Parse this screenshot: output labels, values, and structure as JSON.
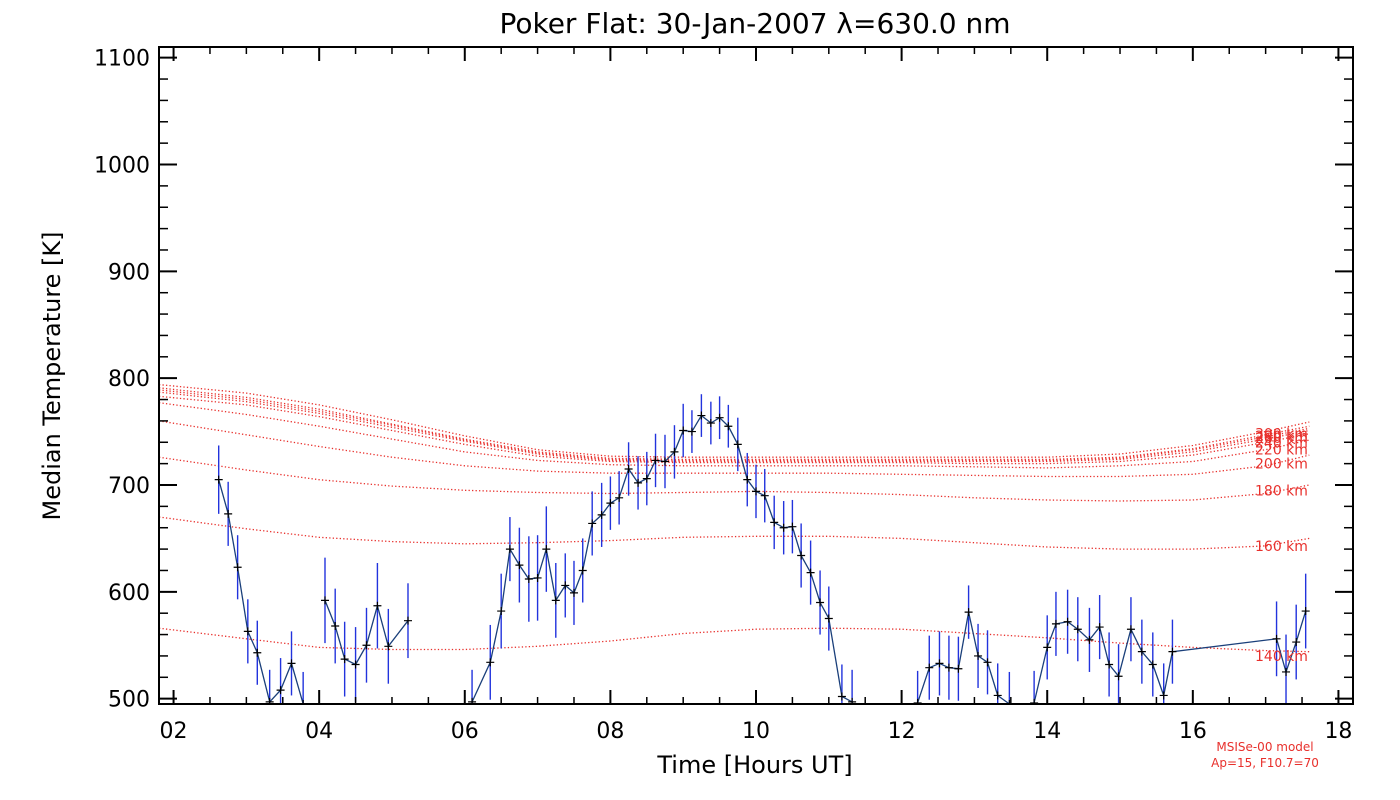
{
  "chart_data": {
    "type": "line",
    "title": "Poker Flat: 30-Jan-2007 λ=630.0 nm",
    "xlabel": "Time [Hours UT]",
    "ylabel": "Median Temperature [K]",
    "xlim": [
      1.8,
      18.2
    ],
    "ylim": [
      495,
      1110
    ],
    "x_ticks": [
      2,
      4,
      6,
      8,
      10,
      12,
      14,
      16,
      18
    ],
    "x_tick_labels": [
      "02",
      "04",
      "06",
      "08",
      "10",
      "12",
      "14",
      "16",
      "18"
    ],
    "y_ticks": [
      500,
      600,
      700,
      800,
      900,
      1000,
      1100
    ],
    "y_tick_labels": [
      "500",
      "600",
      "700",
      "800",
      "900",
      "1000",
      "1100"
    ],
    "grid": false,
    "colors": {
      "measurement_line": "#1a3f7a",
      "error_bar": "#2233dd",
      "marker": "#000000",
      "model": "#e8302c"
    },
    "measured": {
      "points": [
        [
          2.62,
          705,
          32
        ],
        [
          2.75,
          673,
          30
        ],
        [
          2.88,
          623,
          30
        ],
        [
          3.02,
          563,
          30
        ],
        [
          3.15,
          543,
          30
        ],
        [
          3.32,
          497,
          30
        ],
        [
          3.47,
          508,
          30
        ],
        [
          3.62,
          533,
          30
        ],
        [
          3.78,
          495,
          30
        ],
        [
          4.08,
          592,
          40
        ],
        [
          4.22,
          568,
          35
        ],
        [
          4.35,
          537,
          35
        ],
        [
          4.5,
          532,
          35
        ],
        [
          4.65,
          550,
          35
        ],
        [
          4.8,
          587,
          40
        ],
        [
          4.95,
          549,
          35
        ],
        [
          5.22,
          573,
          35
        ],
        [
          6.1,
          497,
          30
        ],
        [
          6.35,
          534,
          35
        ],
        [
          6.5,
          582,
          35
        ],
        [
          6.62,
          640,
          30
        ],
        [
          6.75,
          625,
          35
        ],
        [
          6.88,
          612,
          40
        ],
        [
          7.0,
          613,
          40
        ],
        [
          7.12,
          640,
          40
        ],
        [
          7.25,
          592,
          35
        ],
        [
          7.38,
          606,
          30
        ],
        [
          7.5,
          599,
          30
        ],
        [
          7.62,
          620,
          30
        ],
        [
          7.75,
          664,
          30
        ],
        [
          7.88,
          672,
          30
        ],
        [
          8.0,
          683,
          25
        ],
        [
          8.12,
          688,
          25
        ],
        [
          8.25,
          715,
          25
        ],
        [
          8.38,
          702,
          25
        ],
        [
          8.5,
          706,
          25
        ],
        [
          8.62,
          723,
          25
        ],
        [
          8.75,
          722,
          25
        ],
        [
          8.88,
          731,
          25
        ],
        [
          9.0,
          751,
          25
        ],
        [
          9.12,
          750,
          20
        ],
        [
          9.25,
          765,
          20
        ],
        [
          9.38,
          758,
          20
        ],
        [
          9.5,
          763,
          20
        ],
        [
          9.62,
          755,
          20
        ],
        [
          9.75,
          738,
          25
        ],
        [
          9.88,
          705,
          25
        ],
        [
          10.0,
          694,
          25
        ],
        [
          10.12,
          690,
          25
        ],
        [
          10.25,
          665,
          25
        ],
        [
          10.38,
          660,
          25
        ],
        [
          10.5,
          661,
          25
        ],
        [
          10.62,
          634,
          30
        ],
        [
          10.75,
          618,
          30
        ],
        [
          10.88,
          590,
          30
        ],
        [
          11.0,
          575,
          30
        ],
        [
          11.18,
          502,
          30
        ],
        [
          11.32,
          497,
          30
        ],
        [
          12.22,
          496,
          30
        ],
        [
          12.38,
          529,
          30
        ],
        [
          12.52,
          533,
          30
        ],
        [
          12.65,
          529,
          30
        ],
        [
          12.78,
          528,
          30
        ],
        [
          12.92,
          581,
          25
        ],
        [
          13.05,
          540,
          30
        ],
        [
          13.18,
          534,
          30
        ],
        [
          13.32,
          503,
          30
        ],
        [
          13.48,
          495,
          30
        ],
        [
          13.82,
          496,
          30
        ],
        [
          14.0,
          548,
          30
        ],
        [
          14.12,
          570,
          30
        ],
        [
          14.28,
          572,
          30
        ],
        [
          14.42,
          565,
          30
        ],
        [
          14.58,
          555,
          30
        ],
        [
          14.72,
          567,
          30
        ],
        [
          14.85,
          532,
          30
        ],
        [
          14.98,
          521,
          30
        ],
        [
          15.15,
          565,
          30
        ],
        [
          15.3,
          544,
          30
        ],
        [
          15.45,
          532,
          30
        ],
        [
          15.6,
          503,
          30
        ],
        [
          15.72,
          544,
          30
        ],
        [
          17.15,
          556,
          35
        ],
        [
          17.28,
          525,
          35
        ],
        [
          17.42,
          553,
          35
        ],
        [
          17.55,
          582,
          35
        ]
      ],
      "gaps_after": [
        3.78,
        5.22,
        11.32,
        13.48
      ]
    },
    "model_series": [
      {
        "name": "140 km",
        "label_y": 540,
        "values": [
          [
            1.8,
            566
          ],
          [
            3,
            556
          ],
          [
            4,
            548
          ],
          [
            5,
            546
          ],
          [
            6,
            546
          ],
          [
            7,
            549
          ],
          [
            8,
            554
          ],
          [
            9,
            561
          ],
          [
            10,
            565
          ],
          [
            11,
            566
          ],
          [
            12,
            565
          ],
          [
            13,
            561
          ],
          [
            14,
            557
          ],
          [
            15,
            552
          ],
          [
            16,
            548
          ],
          [
            17,
            545
          ],
          [
            17.6,
            544
          ]
        ]
      },
      {
        "name": "160 km",
        "label_y": 643,
        "values": [
          [
            1.8,
            670
          ],
          [
            3,
            659
          ],
          [
            4,
            651
          ],
          [
            5,
            647
          ],
          [
            6,
            645
          ],
          [
            7,
            646
          ],
          [
            8,
            648
          ],
          [
            9,
            651
          ],
          [
            10,
            652
          ],
          [
            11,
            652
          ],
          [
            12,
            650
          ],
          [
            13,
            646
          ],
          [
            14,
            642
          ],
          [
            15,
            640
          ],
          [
            16,
            640
          ],
          [
            17,
            643
          ],
          [
            17.6,
            650
          ]
        ]
      },
      {
        "name": "180 km",
        "label_y": 695,
        "values": [
          [
            1.8,
            726
          ],
          [
            3,
            714
          ],
          [
            4,
            705
          ],
          [
            5,
            699
          ],
          [
            6,
            695
          ],
          [
            7,
            693
          ],
          [
            8,
            692
          ],
          [
            9,
            693
          ],
          [
            10,
            694
          ],
          [
            11,
            693
          ],
          [
            12,
            691
          ],
          [
            13,
            688
          ],
          [
            14,
            686
          ],
          [
            15,
            685
          ],
          [
            16,
            686
          ],
          [
            17,
            692
          ],
          [
            17.6,
            700
          ]
        ]
      },
      {
        "name": "200 km",
        "label_y": 720,
        "values": [
          [
            1.8,
            760
          ],
          [
            3,
            747
          ],
          [
            4,
            736
          ],
          [
            5,
            726
          ],
          [
            6,
            718
          ],
          [
            7,
            713
          ],
          [
            8,
            711
          ],
          [
            9,
            711
          ],
          [
            10,
            711
          ],
          [
            11,
            711
          ],
          [
            12,
            710
          ],
          [
            13,
            709
          ],
          [
            14,
            708
          ],
          [
            15,
            708
          ],
          [
            16,
            710
          ],
          [
            17,
            718
          ],
          [
            17.6,
            728
          ]
        ]
      },
      {
        "name": "220 km",
        "label_y": 733,
        "values": [
          [
            1.8,
            777
          ],
          [
            3,
            766
          ],
          [
            4,
            755
          ],
          [
            5,
            743
          ],
          [
            6,
            731
          ],
          [
            7,
            723
          ],
          [
            8,
            719
          ],
          [
            9,
            718
          ],
          [
            10,
            718
          ],
          [
            11,
            718
          ],
          [
            12,
            718
          ],
          [
            13,
            717
          ],
          [
            14,
            716
          ],
          [
            15,
            718
          ],
          [
            16,
            722
          ],
          [
            17,
            733
          ],
          [
            17.6,
            742
          ]
        ]
      },
      {
        "name": "240 km",
        "label_y": 740,
        "values": [
          [
            1.8,
            783
          ],
          [
            3,
            775
          ],
          [
            4,
            764
          ],
          [
            5,
            751
          ],
          [
            6,
            738
          ],
          [
            7,
            727
          ],
          [
            8,
            722
          ],
          [
            9,
            721
          ],
          [
            10,
            721
          ],
          [
            11,
            721
          ],
          [
            12,
            721
          ],
          [
            13,
            720
          ],
          [
            14,
            720
          ],
          [
            15,
            722
          ],
          [
            16,
            728
          ],
          [
            17,
            740
          ],
          [
            17.6,
            748
          ]
        ]
      },
      {
        "name": "260 km",
        "label_y": 744,
        "values": [
          [
            1.8,
            787
          ],
          [
            3,
            778
          ],
          [
            4,
            767
          ],
          [
            5,
            754
          ],
          [
            6,
            741
          ],
          [
            7,
            729
          ],
          [
            8,
            723
          ],
          [
            9,
            722
          ],
          [
            10,
            722
          ],
          [
            11,
            722
          ],
          [
            12,
            722
          ],
          [
            13,
            722
          ],
          [
            14,
            722
          ],
          [
            15,
            724
          ],
          [
            16,
            731
          ],
          [
            17,
            743
          ],
          [
            17.6,
            751
          ]
        ]
      },
      {
        "name": "280 km",
        "label_y": 746,
        "values": [
          [
            1.8,
            789
          ],
          [
            3,
            780
          ],
          [
            4,
            769
          ],
          [
            5,
            756
          ],
          [
            6,
            742
          ],
          [
            7,
            730
          ],
          [
            8,
            724
          ],
          [
            9,
            723
          ],
          [
            10,
            723
          ],
          [
            11,
            723
          ],
          [
            12,
            723
          ],
          [
            13,
            723
          ],
          [
            14,
            723
          ],
          [
            15,
            725
          ],
          [
            16,
            733
          ],
          [
            17,
            745
          ],
          [
            17.6,
            753
          ]
        ]
      },
      {
        "name": "300 km",
        "label_y": 748,
        "values": [
          [
            1.8,
            791
          ],
          [
            3,
            782
          ],
          [
            4,
            771
          ],
          [
            5,
            757
          ],
          [
            6,
            743
          ],
          [
            7,
            731
          ],
          [
            8,
            725
          ],
          [
            9,
            724
          ],
          [
            10,
            724
          ],
          [
            11,
            724
          ],
          [
            12,
            724
          ],
          [
            13,
            724
          ],
          [
            14,
            724
          ],
          [
            15,
            726
          ],
          [
            16,
            734
          ],
          [
            17,
            747
          ],
          [
            17.6,
            755
          ]
        ]
      },
      {
        "name": "",
        "label_y": null,
        "values": [
          [
            1.8,
            794
          ],
          [
            3,
            786
          ],
          [
            4,
            775
          ],
          [
            5,
            761
          ],
          [
            6,
            746
          ],
          [
            7,
            733
          ],
          [
            8,
            727
          ],
          [
            9,
            726
          ],
          [
            10,
            726
          ],
          [
            11,
            726
          ],
          [
            12,
            726
          ],
          [
            13,
            726
          ],
          [
            14,
            726
          ],
          [
            15,
            729
          ],
          [
            16,
            737
          ],
          [
            17,
            750
          ],
          [
            17.6,
            759
          ]
        ]
      }
    ],
    "annotations": [
      "MSISe-00 model",
      "Ap=15, F10.7=70"
    ]
  }
}
